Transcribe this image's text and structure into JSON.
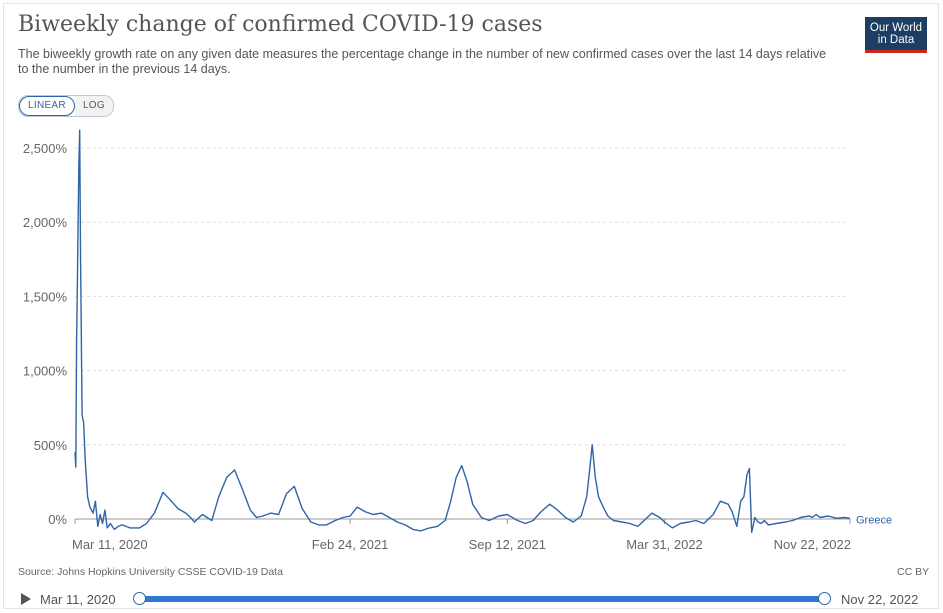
{
  "header": {
    "title": "Biweekly change of confirmed COVID-19 cases",
    "subtitle": "The biweekly growth rate on any given date measures the percentage change in the number of new confirmed cases over the last 14 days relative to the number in the previous 14 days.",
    "logo_line1": "Our World",
    "logo_line2": "in Data"
  },
  "controls": {
    "linear_label": "LINEAR",
    "log_label": "LOG",
    "active_scale": "linear"
  },
  "chart_data": {
    "type": "line",
    "title": "Biweekly change of confirmed COVID-19 cases",
    "xlabel": "",
    "ylabel": "",
    "x_range": [
      "2020-03-11",
      "2022-11-22"
    ],
    "ylim": [
      -100,
      2650
    ],
    "y_ticks": [
      0,
      500,
      1000,
      1500,
      2000,
      2500
    ],
    "y_tick_labels": [
      "0%",
      "500%",
      "1,000%",
      "1,500%",
      "2,000%",
      "2,500%"
    ],
    "x_tick_labels": [
      "Mar 11, 2020",
      "Feb 24, 2021",
      "Sep 12, 2021",
      "Mar 31, 2022",
      "Nov 22, 2022"
    ],
    "x_tick_dates": [
      "2020-03-11",
      "2021-02-24",
      "2021-09-12",
      "2022-03-31",
      "2022-11-22"
    ],
    "grid": "horizontal dashed",
    "series": [
      {
        "name": "Greece",
        "color": "#2f65a8",
        "x": [
          "2020-03-11",
          "2020-03-12",
          "2020-03-13",
          "2020-03-14",
          "2020-03-15",
          "2020-03-16",
          "2020-03-17",
          "2020-03-18",
          "2020-03-20",
          "2020-03-22",
          "2020-03-24",
          "2020-03-27",
          "2020-03-30",
          "2020-04-03",
          "2020-04-06",
          "2020-04-09",
          "2020-04-12",
          "2020-04-15",
          "2020-04-18",
          "2020-04-21",
          "2020-04-25",
          "2020-04-30",
          "2020-05-05",
          "2020-05-10",
          "2020-05-20",
          "2020-06-01",
          "2020-06-10",
          "2020-06-20",
          "2020-07-01",
          "2020-07-10",
          "2020-07-20",
          "2020-07-30",
          "2020-08-05",
          "2020-08-10",
          "2020-08-20",
          "2020-09-01",
          "2020-09-10",
          "2020-09-20",
          "2020-09-30",
          "2020-10-10",
          "2020-10-20",
          "2020-10-28",
          "2020-11-05",
          "2020-11-15",
          "2020-11-25",
          "2020-12-05",
          "2020-12-15",
          "2020-12-25",
          "2021-01-05",
          "2021-01-15",
          "2021-01-25",
          "2021-02-05",
          "2021-02-15",
          "2021-02-24",
          "2021-03-05",
          "2021-03-15",
          "2021-03-25",
          "2021-04-05",
          "2021-04-15",
          "2021-04-25",
          "2021-05-05",
          "2021-05-15",
          "2021-05-25",
          "2021-06-05",
          "2021-06-15",
          "2021-06-25",
          "2021-07-02",
          "2021-07-09",
          "2021-07-16",
          "2021-07-23",
          "2021-07-30",
          "2021-08-10",
          "2021-08-20",
          "2021-09-01",
          "2021-09-12",
          "2021-09-25",
          "2021-10-05",
          "2021-10-15",
          "2021-10-25",
          "2021-11-05",
          "2021-11-15",
          "2021-11-25",
          "2021-12-05",
          "2021-12-15",
          "2021-12-22",
          "2021-12-26",
          "2021-12-29",
          "2022-01-02",
          "2022-01-06",
          "2022-01-12",
          "2022-01-18",
          "2022-01-25",
          "2022-02-05",
          "2022-02-15",
          "2022-02-25",
          "2022-03-05",
          "2022-03-15",
          "2022-03-25",
          "2022-03-31",
          "2022-04-10",
          "2022-04-20",
          "2022-05-01",
          "2022-05-10",
          "2022-05-20",
          "2022-06-01",
          "2022-06-10",
          "2022-06-20",
          "2022-06-25",
          "2022-07-01",
          "2022-07-06",
          "2022-07-10",
          "2022-07-14",
          "2022-07-17",
          "2022-07-20",
          "2022-07-24",
          "2022-07-28",
          "2022-08-01",
          "2022-08-05",
          "2022-08-10",
          "2022-08-20",
          "2022-09-01",
          "2022-09-10",
          "2022-09-20",
          "2022-10-01",
          "2022-10-05",
          "2022-10-10",
          "2022-10-15",
          "2022-10-25",
          "2022-11-05",
          "2022-11-15",
          "2022-11-22"
        ],
        "values": [
          450,
          350,
          1200,
          1600,
          2000,
          2400,
          2620,
          1800,
          700,
          650,
          400,
          150,
          80,
          40,
          120,
          -50,
          30,
          -30,
          60,
          -60,
          -30,
          -70,
          -50,
          -40,
          -60,
          -60,
          -30,
          40,
          180,
          130,
          70,
          40,
          10,
          -20,
          30,
          -10,
          150,
          280,
          330,
          200,
          60,
          10,
          20,
          40,
          30,
          170,
          220,
          70,
          -20,
          -40,
          -40,
          -10,
          10,
          20,
          80,
          50,
          30,
          40,
          10,
          -20,
          -40,
          -70,
          -80,
          -60,
          -50,
          -10,
          120,
          280,
          360,
          250,
          100,
          10,
          -10,
          20,
          30,
          -10,
          -30,
          -10,
          50,
          100,
          60,
          10,
          -20,
          20,
          150,
          340,
          500,
          280,
          150,
          80,
          20,
          -10,
          -20,
          -30,
          -50,
          -10,
          40,
          10,
          -20,
          -60,
          -30,
          -20,
          -10,
          -30,
          30,
          120,
          100,
          50,
          -50,
          120,
          150,
          300,
          340,
          -90,
          10,
          -20,
          -30,
          -10,
          -40,
          -30,
          -20,
          -10,
          10,
          20,
          10,
          30,
          10,
          20,
          5,
          10,
          5
        ]
      }
    ]
  },
  "footer": {
    "source": "Source: Johns Hopkins University CSSE COVID-19 Data",
    "license": "CC BY"
  },
  "timeline": {
    "start_label": "Mar 11, 2020",
    "end_label": "Nov 22, 2022"
  }
}
